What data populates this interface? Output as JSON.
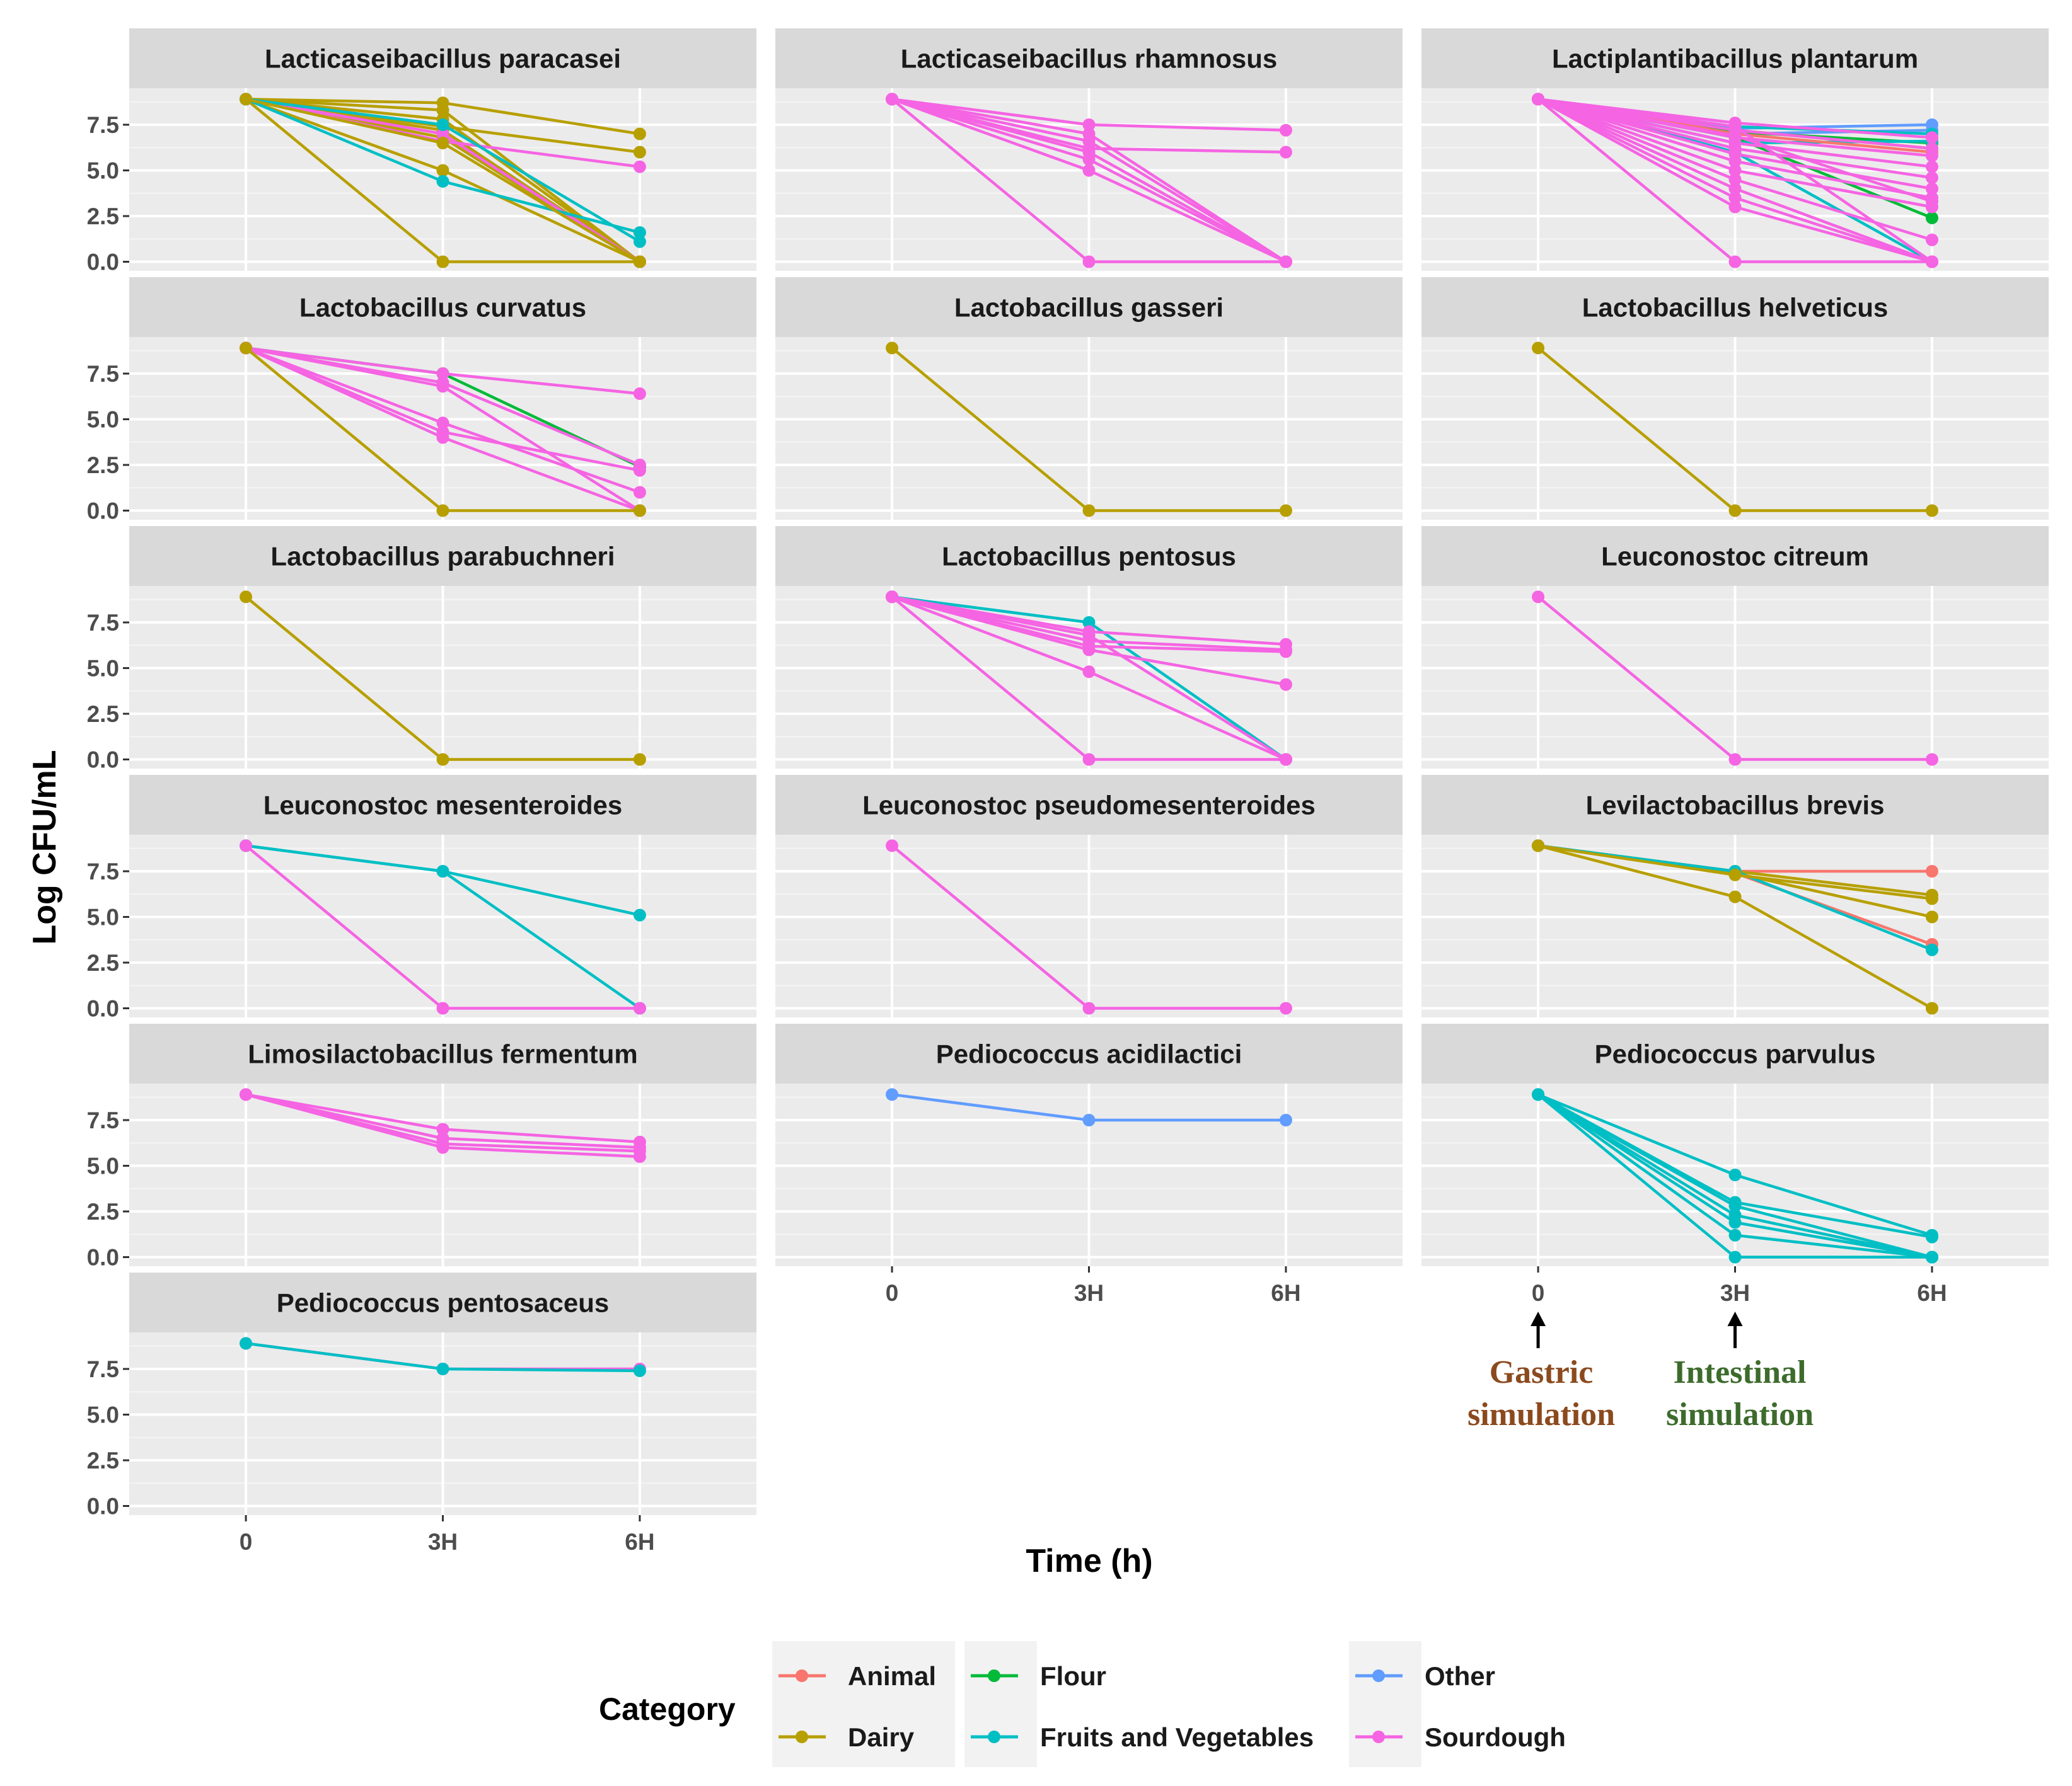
{
  "chart_data": {
    "type": "line",
    "ylabel": "Log CFU/mL",
    "xlabel": "Time (h)",
    "x_ticks": [
      "0",
      "3H",
      "6H"
    ],
    "y_ticks": [
      "0.0",
      "2.5",
      "5.0",
      "7.5"
    ],
    "ylim": [
      -0.5,
      9.5
    ],
    "legend": {
      "title": "Category",
      "entries": [
        {
          "name": "Animal",
          "color": "#F8766D"
        },
        {
          "name": "Dairy",
          "color": "#B79F00"
        },
        {
          "name": "Flour",
          "color": "#00BA38"
        },
        {
          "name": "Fruits and Vegetables",
          "color": "#00BFC4"
        },
        {
          "name": "Other",
          "color": "#619CFF"
        },
        {
          "name": "Sourdough",
          "color": "#F564E3"
        }
      ]
    },
    "annotations": {
      "gastric": {
        "line1": "Gastric",
        "line2": "simulation",
        "color": "#8B4A1E"
      },
      "intestinal": {
        "line1": "Intestinal",
        "line2": "simulation",
        "color": "#3D6B2C"
      }
    },
    "panels": [
      {
        "title": "Lacticaseibacillus paracasei",
        "series": [
          {
            "category": "Dairy",
            "values": [
              8.9,
              8.7,
              7.0
            ]
          },
          {
            "category": "Dairy",
            "values": [
              8.9,
              7.4,
              6.0
            ]
          },
          {
            "category": "Dairy",
            "values": [
              8.9,
              8.3,
              0.0
            ]
          },
          {
            "category": "Dairy",
            "values": [
              8.9,
              7.8,
              0.0
            ]
          },
          {
            "category": "Dairy",
            "values": [
              8.9,
              7.2,
              0.0
            ]
          },
          {
            "category": "Dairy",
            "values": [
              8.9,
              6.8,
              0.0
            ]
          },
          {
            "category": "Dairy",
            "values": [
              8.9,
              5.0,
              0.0
            ]
          },
          {
            "category": "Dairy",
            "values": [
              8.9,
              0.0,
              0.0
            ]
          },
          {
            "category": "Sourdough",
            "values": [
              8.9,
              6.6,
              5.2
            ]
          },
          {
            "category": "Sourdough",
            "values": [
              8.9,
              7.0,
              0.0
            ]
          },
          {
            "category": "Fruits and Vegetables",
            "values": [
              8.9,
              4.4,
              1.6
            ]
          },
          {
            "category": "Fruits and Vegetables",
            "values": [
              8.9,
              7.5,
              1.1
            ]
          },
          {
            "category": "Dairy",
            "values": [
              8.9,
              6.5,
              0.0
            ]
          }
        ]
      },
      {
        "title": "Lacticaseibacillus rhamnosus",
        "series": [
          {
            "category": "Sourdough",
            "values": [
              8.9,
              7.5,
              7.2
            ]
          },
          {
            "category": "Sourdough",
            "values": [
              8.9,
              6.2,
              6.0
            ]
          },
          {
            "category": "Sourdough",
            "values": [
              8.9,
              7.0,
              0.0
            ]
          },
          {
            "category": "Sourdough",
            "values": [
              8.9,
              6.6,
              0.0
            ]
          },
          {
            "category": "Sourdough",
            "values": [
              8.9,
              6.0,
              0.0
            ]
          },
          {
            "category": "Sourdough",
            "values": [
              8.9,
              5.6,
              0.0
            ]
          },
          {
            "category": "Sourdough",
            "values": [
              8.9,
              5.0,
              0.0
            ]
          },
          {
            "category": "Sourdough",
            "values": [
              8.9,
              0.0,
              0.0
            ]
          }
        ]
      },
      {
        "title": "Lactiplantibacillus plantarum",
        "series": [
          {
            "category": "Other",
            "values": [
              8.9,
              7.3,
              7.5
            ]
          },
          {
            "category": "Other",
            "values": [
              8.9,
              7.0,
              7.2
            ]
          },
          {
            "category": "Fruits and Vegetables",
            "values": [
              8.9,
              7.4,
              7.0
            ]
          },
          {
            "category": "Flour",
            "values": [
              8.9,
              7.1,
              6.5
            ]
          },
          {
            "category": "Flour",
            "values": [
              8.9,
              6.8,
              2.4
            ]
          },
          {
            "category": "Fruits and Vegetables",
            "values": [
              8.9,
              6.5,
              6.6
            ]
          },
          {
            "category": "Fruits and Vegetables",
            "values": [
              8.9,
              6.0,
              0.0
            ]
          },
          {
            "category": "Animal",
            "values": [
              8.9,
              7.0,
              6.0
            ]
          },
          {
            "category": "Dairy",
            "values": [
              8.9,
              7.2,
              6.2
            ]
          },
          {
            "category": "Sourdough",
            "values": [
              8.9,
              7.6,
              6.8
            ]
          },
          {
            "category": "Sourdough",
            "values": [
              8.9,
              7.2,
              6.2
            ]
          },
          {
            "category": "Sourdough",
            "values": [
              8.9,
              6.8,
              5.8
            ]
          },
          {
            "category": "Sourdough",
            "values": [
              8.9,
              6.5,
              5.2
            ]
          },
          {
            "category": "Sourdough",
            "values": [
              8.9,
              6.2,
              4.6
            ]
          },
          {
            "category": "Sourdough",
            "values": [
              8.9,
              5.9,
              4.0
            ]
          },
          {
            "category": "Sourdough",
            "values": [
              8.9,
              5.5,
              3.5
            ]
          },
          {
            "category": "Sourdough",
            "values": [
              8.9,
              5.0,
              3.0
            ]
          },
          {
            "category": "Sourdough",
            "values": [
              8.9,
              4.5,
              1.2
            ]
          },
          {
            "category": "Sourdough",
            "values": [
              8.9,
              4.0,
              0.0
            ]
          },
          {
            "category": "Sourdough",
            "values": [
              8.9,
              3.5,
              0.0
            ]
          },
          {
            "category": "Sourdough",
            "values": [
              8.9,
              3.0,
              0.0
            ]
          },
          {
            "category": "Sourdough",
            "values": [
              8.9,
              0.0,
              0.0
            ]
          },
          {
            "category": "Sourdough",
            "values": [
              8.9,
              7.4,
              0.0
            ]
          },
          {
            "category": "Sourdough",
            "values": [
              8.9,
              6.9,
              3.3
            ]
          }
        ]
      },
      {
        "title": "Lactobacillus curvatus",
        "series": [
          {
            "category": "Flour",
            "values": [
              8.9,
              7.5,
              2.4
            ]
          },
          {
            "category": "Sourdough",
            "values": [
              8.9,
              7.5,
              6.4
            ]
          },
          {
            "category": "Sourdough",
            "values": [
              8.9,
              7.0,
              2.5
            ]
          },
          {
            "category": "Sourdough",
            "values": [
              8.9,
              4.8,
              1.0
            ]
          },
          {
            "category": "Sourdough",
            "values": [
              8.9,
              4.3,
              2.2
            ]
          },
          {
            "category": "Sourdough",
            "values": [
              8.9,
              4.0,
              0.0
            ]
          },
          {
            "category": "Sourdough",
            "values": [
              8.9,
              6.8,
              0.0
            ]
          },
          {
            "category": "Dairy",
            "values": [
              8.9,
              0.0,
              0.0
            ]
          }
        ]
      },
      {
        "title": "Lactobacillus gasseri",
        "series": [
          {
            "category": "Dairy",
            "values": [
              8.9,
              0.0,
              0.0
            ]
          }
        ]
      },
      {
        "title": "Lactobacillus helveticus",
        "series": [
          {
            "category": "Dairy",
            "values": [
              8.9,
              0.0,
              0.0
            ]
          }
        ]
      },
      {
        "title": "Lactobacillus parabuchneri",
        "series": [
          {
            "category": "Dairy",
            "values": [
              8.9,
              0.0,
              0.0
            ]
          }
        ]
      },
      {
        "title": "Lactobacillus pentosus",
        "series": [
          {
            "category": "Fruits and Vegetables",
            "values": [
              8.9,
              7.5,
              0.0
            ]
          },
          {
            "category": "Sourdough",
            "values": [
              8.9,
              7.0,
              6.3
            ]
          },
          {
            "category": "Sourdough",
            "values": [
              8.9,
              6.5,
              6.0
            ]
          },
          {
            "category": "Sourdough",
            "values": [
              8.9,
              6.2,
              5.9
            ]
          },
          {
            "category": "Sourdough",
            "values": [
              8.9,
              6.0,
              4.1
            ]
          },
          {
            "category": "Sourdough",
            "values": [
              8.9,
              4.8,
              0.0
            ]
          },
          {
            "category": "Sourdough",
            "values": [
              8.9,
              0.0,
              0.0
            ]
          },
          {
            "category": "Sourdough",
            "values": [
              8.9,
              6.8,
              0.0
            ]
          }
        ]
      },
      {
        "title": "Leuconostoc citreum",
        "series": [
          {
            "category": "Sourdough",
            "values": [
              8.9,
              0.0,
              0.0
            ]
          }
        ]
      },
      {
        "title": "Leuconostoc mesenteroides",
        "series": [
          {
            "category": "Fruits and Vegetables",
            "values": [
              8.9,
              7.5,
              5.1
            ]
          },
          {
            "category": "Fruits and Vegetables",
            "values": [
              8.9,
              7.5,
              0.0
            ]
          },
          {
            "category": "Sourdough",
            "values": [
              8.9,
              0.0,
              0.0
            ]
          }
        ]
      },
      {
        "title": "Leuconostoc pseudomesenteroides",
        "series": [
          {
            "category": "Sourdough",
            "values": [
              8.9,
              0.0,
              0.0
            ]
          }
        ]
      },
      {
        "title": "Levilactobacillus  brevis",
        "series": [
          {
            "category": "Animal",
            "values": [
              8.9,
              7.5,
              7.5
            ]
          },
          {
            "category": "Animal",
            "values": [
              8.9,
              7.4,
              3.5
            ]
          },
          {
            "category": "Dairy",
            "values": [
              8.9,
              7.5,
              6.2
            ]
          },
          {
            "category": "Dairy",
            "values": [
              8.9,
              7.4,
              5.0
            ]
          },
          {
            "category": "Dairy",
            "values": [
              8.9,
              6.1,
              0.0
            ]
          },
          {
            "category": "Fruits and Vegetables",
            "values": [
              8.9,
              7.5,
              3.2
            ]
          },
          {
            "category": "Dairy",
            "values": [
              8.9,
              7.3,
              6.0
            ]
          }
        ]
      },
      {
        "title": "Limosilactobacillus fermentum",
        "series": [
          {
            "category": "Sourdough",
            "values": [
              8.9,
              7.0,
              6.3
            ]
          },
          {
            "category": "Sourdough",
            "values": [
              8.9,
              6.5,
              6.0
            ]
          },
          {
            "category": "Sourdough",
            "values": [
              8.9,
              6.2,
              5.8
            ]
          },
          {
            "category": "Sourdough",
            "values": [
              8.9,
              6.0,
              5.5
            ]
          }
        ]
      },
      {
        "title": "Pediococcus acidilactici",
        "series": [
          {
            "category": "Other",
            "values": [
              8.9,
              7.5,
              7.5
            ]
          }
        ]
      },
      {
        "title": "Pediococcus parvulus",
        "series": [
          {
            "category": "Fruits and Vegetables",
            "values": [
              8.9,
              4.5,
              1.2
            ]
          },
          {
            "category": "Fruits and Vegetables",
            "values": [
              8.9,
              3.0,
              1.1
            ]
          },
          {
            "category": "Fruits and Vegetables",
            "values": [
              8.9,
              2.8,
              0.0
            ]
          },
          {
            "category": "Fruits and Vegetables",
            "values": [
              8.9,
              2.3,
              0.0
            ]
          },
          {
            "category": "Fruits and Vegetables",
            "values": [
              8.9,
              1.9,
              0.0
            ]
          },
          {
            "category": "Fruits and Vegetables",
            "values": [
              8.9,
              1.2,
              0.0
            ]
          },
          {
            "category": "Fruits and Vegetables",
            "values": [
              8.9,
              0.0,
              0.0
            ]
          }
        ]
      },
      {
        "title": "Pediococcus pentosaceus",
        "series": [
          {
            "category": "Sourdough",
            "values": [
              8.9,
              7.5,
              7.5
            ]
          },
          {
            "category": "Fruits and Vegetables",
            "values": [
              8.9,
              7.5,
              7.4
            ]
          }
        ]
      }
    ]
  }
}
